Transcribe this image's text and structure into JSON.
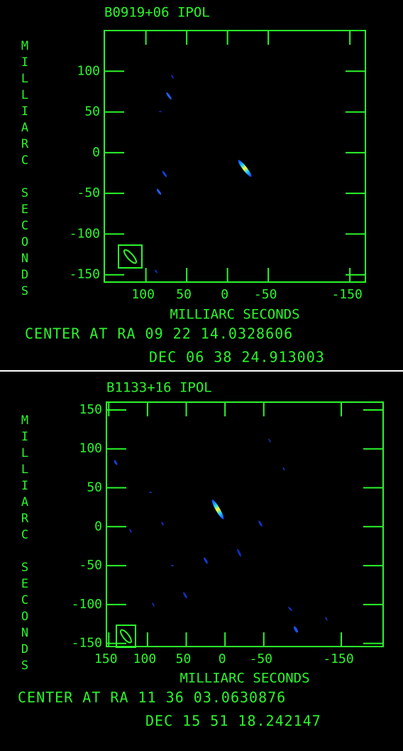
{
  "chart_data": [
    {
      "type": "image",
      "title": "B0919+06 IPOL",
      "x_label": "MILLIARC SECONDS",
      "y_label": "MILLIARC SECONDS",
      "xlim": [
        151,
        -169
      ],
      "ylim": [
        -159,
        150
      ],
      "xticks": [
        100,
        50,
        0,
        -50,
        -150
      ],
      "yticks": [
        100,
        50,
        0,
        -50,
        -100,
        -150
      ],
      "caption": [
        "CENTER AT RA 09 22 14.0328606",
        "DEC 06 38 24.913003"
      ],
      "color": "#2cf52c"
    },
    {
      "type": "image",
      "title": "B1133+16 IPOL",
      "x_label": "MILLIARC SECONDS",
      "y_label": "MILLIARC SECONDS",
      "xlim": [
        153,
        -204
      ],
      "ylim": [
        -154,
        160
      ],
      "xticks": [
        150,
        100,
        50,
        0,
        -50,
        -150
      ],
      "yticks": [
        150,
        100,
        50,
        0,
        -50,
        -100,
        -150
      ],
      "caption": [
        "CENTER AT RA 11 36 03.0630876",
        "DEC 15 51 18.242147"
      ],
      "color": "#2cf52c"
    }
  ]
}
